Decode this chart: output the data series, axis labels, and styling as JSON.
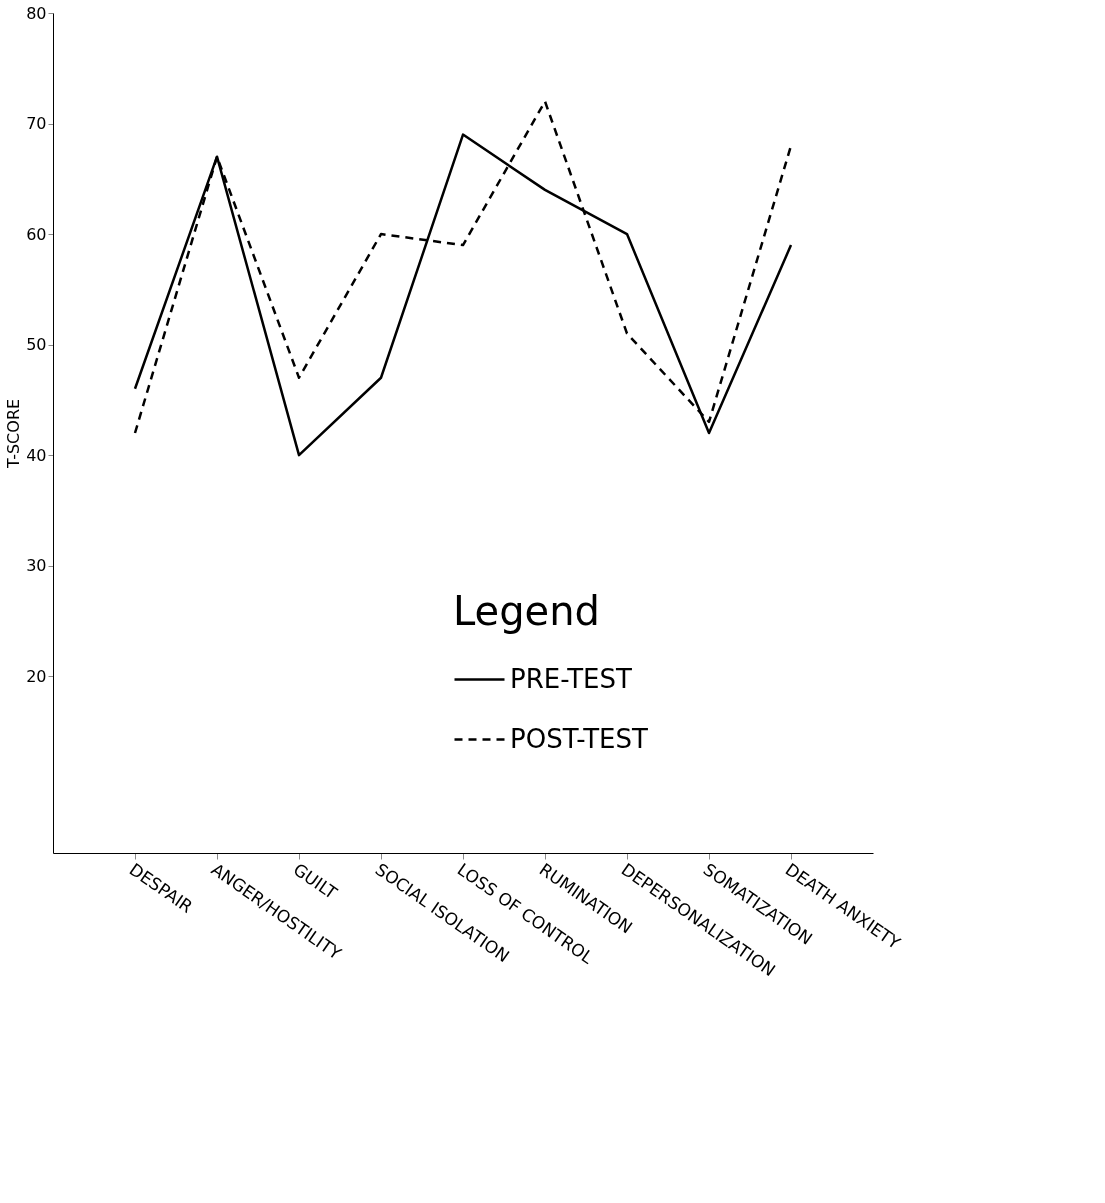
{
  "chart_data": {
    "type": "line",
    "ylabel": "T-SCORE",
    "legend_title": "Legend",
    "legend": "bottom",
    "grid": false,
    "categories": [
      "DESPAIR",
      "ANGER/HOSTILITY",
      "GUILT",
      "SOCIAL ISOLATION",
      "LOSS OF CONTROL",
      "RUMINATION",
      "DEPERSONALIZATION",
      "SOMATIZATION",
      "DEATH ANXIETY"
    ],
    "series": [
      {
        "name": "PRE-TEST",
        "color": "#000000",
        "line_style": "solid",
        "values": [
          46,
          67,
          40,
          47,
          69,
          64,
          60,
          42,
          59
        ]
      },
      {
        "name": "POST-TEST",
        "color": "#000000",
        "line_style": "dashed",
        "values": [
          42,
          67,
          47,
          60,
          59,
          72,
          51,
          43,
          68
        ]
      }
    ],
    "ylim": [
      4,
      80
    ],
    "yticks": [
      20,
      30,
      40,
      50,
      60,
      70,
      80
    ]
  }
}
